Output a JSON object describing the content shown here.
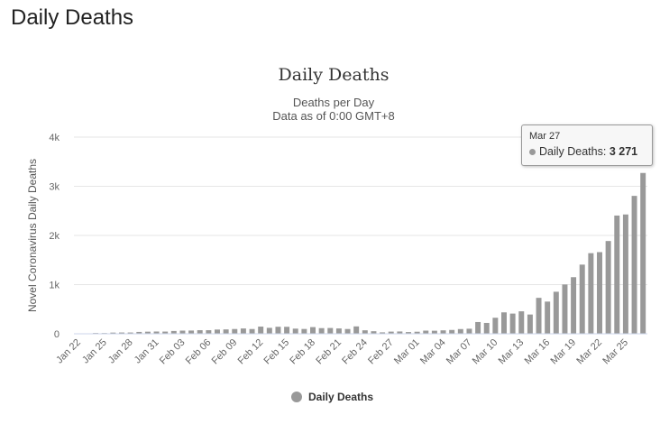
{
  "page": {
    "heading": "Daily Deaths"
  },
  "chart_data": {
    "type": "bar",
    "title": "Daily Deaths",
    "subtitle_lines": [
      "Deaths per Day",
      "Data as of 0:00 GMT+8"
    ],
    "ylabel": "Novel Coronavirus Daily Deaths",
    "xlabel": "",
    "ylim": [
      0,
      4000
    ],
    "yticks": [
      0,
      1000,
      2000,
      3000,
      4000
    ],
    "ytick_labels": [
      "0",
      "1k",
      "2k",
      "3k",
      "4k"
    ],
    "categories": [
      "Jan 22",
      "Jan 23",
      "Jan 24",
      "Jan 25",
      "Jan 26",
      "Jan 27",
      "Jan 28",
      "Jan 29",
      "Jan 30",
      "Jan 31",
      "Feb 01",
      "Feb 02",
      "Feb 03",
      "Feb 04",
      "Feb 05",
      "Feb 06",
      "Feb 07",
      "Feb 08",
      "Feb 09",
      "Feb 10",
      "Feb 11",
      "Feb 12",
      "Feb 13",
      "Feb 14",
      "Feb 15",
      "Feb 16",
      "Feb 17",
      "Feb 18",
      "Feb 19",
      "Feb 20",
      "Feb 21",
      "Feb 22",
      "Feb 23",
      "Feb 24",
      "Feb 25",
      "Feb 26",
      "Feb 27",
      "Feb 28",
      "Feb 29",
      "Mar 01",
      "Mar 02",
      "Mar 03",
      "Mar 04",
      "Mar 05",
      "Mar 06",
      "Mar 07",
      "Mar 08",
      "Mar 09",
      "Mar 10",
      "Mar 11",
      "Mar 12",
      "Mar 13",
      "Mar 14",
      "Mar 15",
      "Mar 16",
      "Mar 17",
      "Mar 18",
      "Mar 19",
      "Mar 20",
      "Mar 21",
      "Mar 22",
      "Mar 23",
      "Mar 24",
      "Mar 25",
      "Mar 26",
      "Mar 27"
    ],
    "xtick_labels": [
      "Jan 22",
      "Jan 25",
      "Jan 28",
      "Jan 31",
      "Feb 03",
      "Feb 06",
      "Feb 09",
      "Feb 12",
      "Feb 15",
      "Feb 18",
      "Feb 21",
      "Feb 24",
      "Feb 27",
      "Mar 01",
      "Mar 04",
      "Mar 07",
      "Mar 10",
      "Mar 13",
      "Mar 16",
      "Mar 19",
      "Mar 22",
      "Mar 25"
    ],
    "series": [
      {
        "name": "Daily Deaths",
        "color": "#999999",
        "values": [
          0,
          8,
          16,
          15,
          24,
          26,
          26,
          38,
          43,
          46,
          45,
          57,
          64,
          66,
          73,
          73,
          86,
          89,
          97,
          108,
          97,
          146,
          121,
          143,
          142,
          105,
          98,
          136,
          115,
          118,
          109,
          97,
          150,
          71,
          52,
          29,
          44,
          47,
          35,
          42,
          64,
          62,
          70,
          78,
          96,
          103,
          239,
          221,
          326,
          436,
          411,
          457,
          392,
          731,
          655,
          855,
          1003,
          1151,
          1407,
          1640,
          1661,
          1887,
          2405,
          2427,
          2805,
          3271
        ]
      }
    ],
    "legend": {
      "position": "bottom-center",
      "label": "Daily Deaths"
    },
    "grid": {
      "y": true,
      "x": false
    },
    "tooltip": {
      "date": "Mar 27",
      "label": "Daily Deaths:",
      "value": "3 271"
    }
  }
}
